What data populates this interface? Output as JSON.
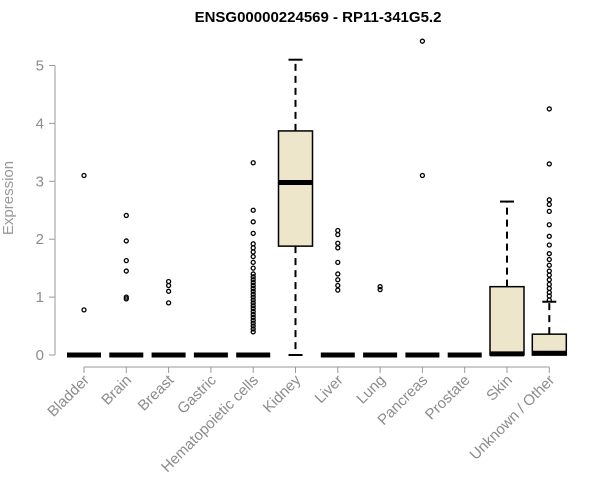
{
  "chart_data": {
    "type": "boxplot",
    "title": "ENSG00000224569 - RP11-341G5.2",
    "ylabel": "Expression",
    "xlabel": "",
    "ylim": [
      0,
      5.4
    ],
    "yticks": [
      0,
      1,
      2,
      3,
      4,
      5
    ],
    "box_fill": "#ede6cb",
    "categories": [
      "Bladder",
      "Brain",
      "Breast",
      "Gastric",
      "Hematopoietic cells",
      "Kidney",
      "Liver",
      "Lung",
      "Pancreas",
      "Prostate",
      "Skin",
      "Unknown / Other"
    ],
    "boxes": [
      {
        "min": 0,
        "q1": 0,
        "median": 0,
        "q3": 0,
        "max": 0,
        "outliers": [
          0.78,
          3.1
        ]
      },
      {
        "min": 0,
        "q1": 0,
        "median": 0,
        "q3": 0,
        "max": 0,
        "outliers": [
          0.97,
          1.0,
          1.45,
          1.63,
          1.97,
          2.41
        ]
      },
      {
        "min": 0,
        "q1": 0,
        "median": 0,
        "q3": 0,
        "max": 0,
        "outliers": [
          0.9,
          1.1,
          1.2,
          1.27
        ]
      },
      {
        "min": 0,
        "q1": 0,
        "median": 0,
        "q3": 0,
        "max": 0,
        "outliers": []
      },
      {
        "min": 0,
        "q1": 0,
        "median": 0,
        "q3": 0,
        "max": 0,
        "outliers": [
          0.4,
          0.45,
          0.5,
          0.55,
          0.6,
          0.65,
          0.7,
          0.75,
          0.8,
          0.85,
          0.9,
          0.95,
          1.0,
          1.05,
          1.1,
          1.15,
          1.2,
          1.25,
          1.3,
          1.35,
          1.4,
          1.5,
          1.6,
          1.7,
          1.78,
          1.85,
          1.92,
          2.1,
          2.3,
          2.5,
          3.32
        ]
      },
      {
        "min": 0,
        "q1": 1.88,
        "median": 2.98,
        "q3": 3.87,
        "max": 5.1,
        "outliers": []
      },
      {
        "min": 0,
        "q1": 0,
        "median": 0,
        "q3": 0,
        "max": 0,
        "outliers": [
          1.12,
          1.2,
          1.3,
          1.4,
          1.6,
          1.85,
          1.93,
          2.08,
          2.15
        ]
      },
      {
        "min": 0,
        "q1": 0,
        "median": 0,
        "q3": 0,
        "max": 0,
        "outliers": [
          1.13,
          1.18
        ]
      },
      {
        "min": 0,
        "q1": 0,
        "median": 0,
        "q3": 0,
        "max": 0,
        "outliers": [
          3.1,
          5.42
        ]
      },
      {
        "min": 0,
        "q1": 0,
        "median": 0,
        "q3": 0,
        "max": 0,
        "outliers": []
      },
      {
        "min": 0,
        "q1": 0,
        "median": 0.02,
        "q3": 1.18,
        "max": 2.65,
        "outliers": []
      },
      {
        "min": 0,
        "q1": 0,
        "median": 0.03,
        "q3": 0.36,
        "max": 0.92,
        "outliers": [
          0.95,
          1.02,
          1.08,
          1.15,
          1.22,
          1.3,
          1.38,
          1.45,
          1.55,
          1.65,
          1.75,
          1.9,
          2.05,
          2.25,
          2.48,
          2.6,
          2.68,
          3.3,
          4.25
        ]
      }
    ]
  }
}
